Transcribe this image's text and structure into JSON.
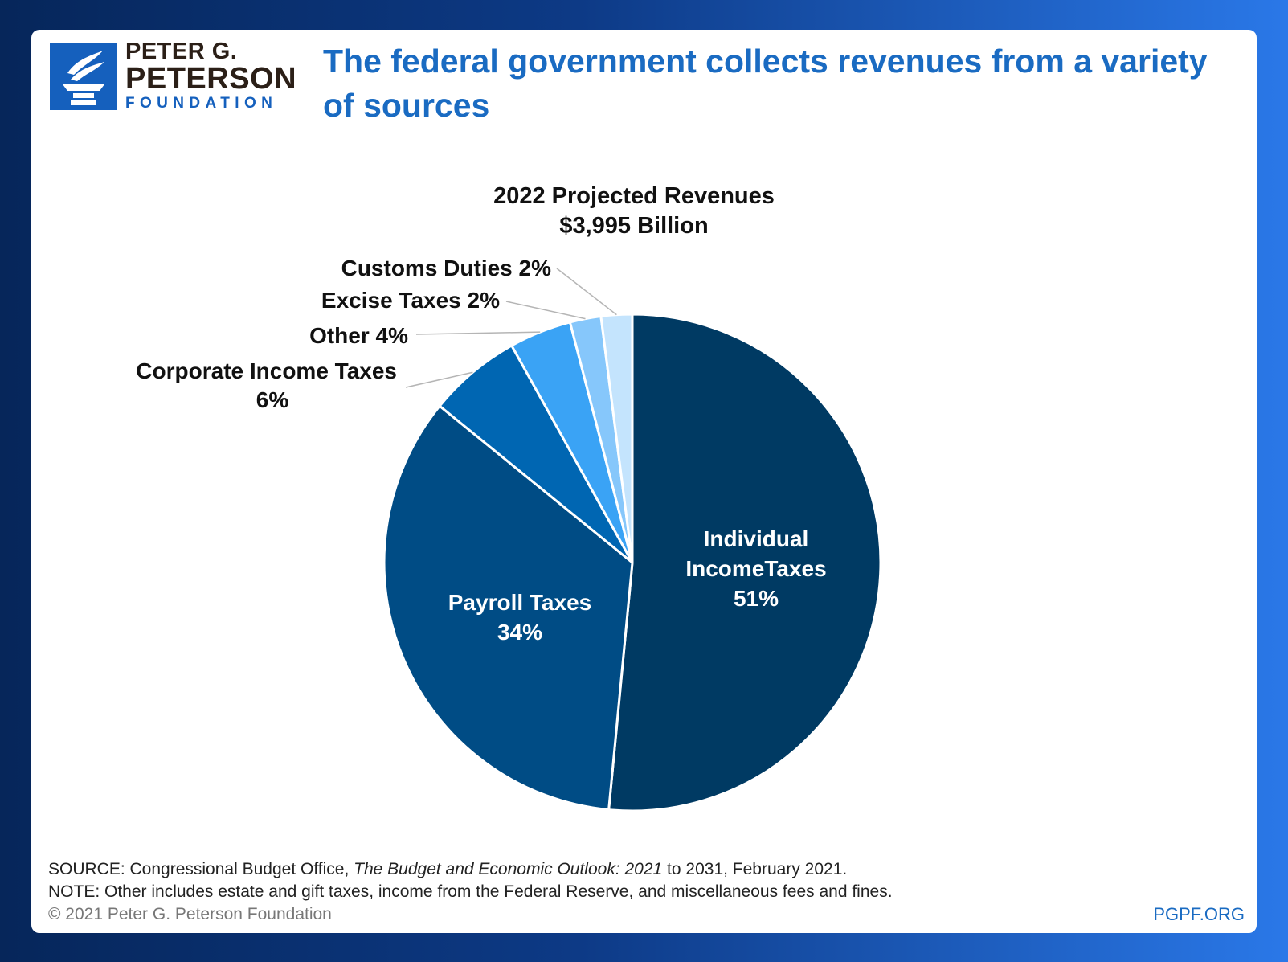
{
  "brand": {
    "line1": "PETER G.",
    "line2": "PETERSON",
    "line3": "FOUNDATION",
    "colors": {
      "logo_blue": "#1560bd",
      "logo_text": "#2b1f17",
      "headline": "#1a6bc2"
    }
  },
  "headline": "The federal government collects revenues from a variety of sources",
  "chart_data": {
    "type": "pie",
    "title": "2022 Projected Revenues",
    "subtitle": "$3,995 Billion",
    "slices": [
      {
        "label": "Individual IncomeTaxes",
        "label_lines": [
          "Individual",
          "IncomeTaxes"
        ],
        "pct_label": "51%",
        "value": 51,
        "color": "#003a63",
        "label_placement": "inside"
      },
      {
        "label": "Payroll Taxes",
        "label_lines": [
          "Payroll Taxes"
        ],
        "pct_label": "34%",
        "value": 34,
        "color": "#004c85",
        "label_placement": "inside"
      },
      {
        "label": "Corporate Income Taxes",
        "label_lines": [
          "Corporate Income Taxes"
        ],
        "pct_label": "6%",
        "value": 6,
        "color": "#0066b2",
        "label_placement": "outside"
      },
      {
        "label": "Other",
        "label_lines": [
          "Other"
        ],
        "pct_label": "4%",
        "value": 4,
        "color": "#3aa3f5",
        "label_placement": "outside"
      },
      {
        "label": "Excise Taxes",
        "label_lines": [
          "Excise Taxes"
        ],
        "pct_label": "2%",
        "value": 2,
        "color": "#86c7fb",
        "label_placement": "outside"
      },
      {
        "label": "Customs Duties",
        "label_lines": [
          "Customs Duties"
        ],
        "pct_label": "2%",
        "value": 2,
        "color": "#c4e4fd",
        "label_placement": "outside"
      }
    ]
  },
  "footer": {
    "source_prefix": "SOURCE: Congressional Budget Office, ",
    "source_title": "The Budget and Economic Outlook: 2021",
    "source_suffix": " to 2031, February 2021.",
    "note": "NOTE: Other includes estate and gift taxes, income from the Federal Reserve, and miscellaneous fees and fines.",
    "copyright": "© 2021 Peter G. Peterson Foundation",
    "site": "PGPF.ORG"
  }
}
